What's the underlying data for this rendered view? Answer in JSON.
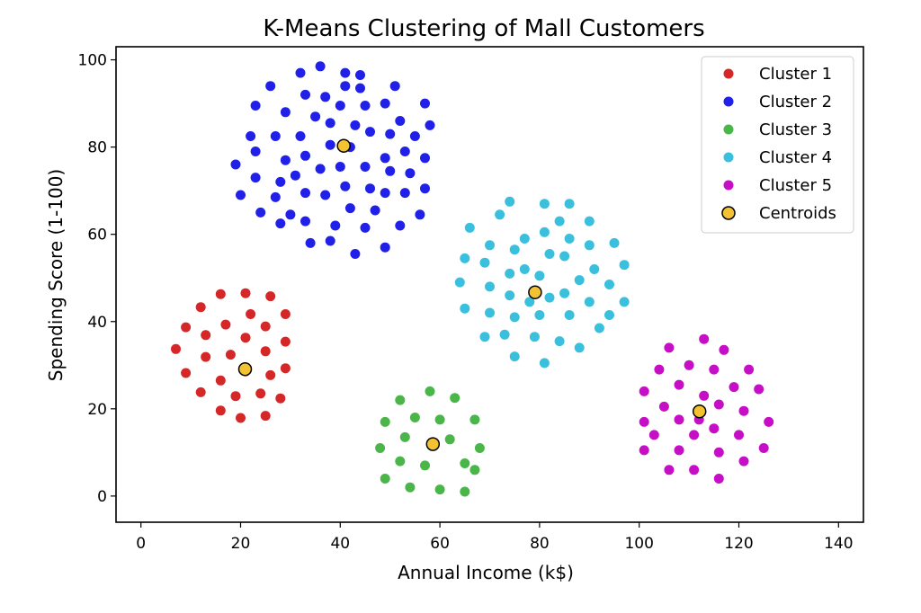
{
  "chart_data": {
    "type": "scatter",
    "title": "K-Means Clustering of Mall Customers",
    "xlabel": "Annual Income (k$)",
    "ylabel": "Spending Score (1-100)",
    "xlim": [
      -5,
      145
    ],
    "ylim": [
      -6,
      103
    ],
    "xticks": [
      0,
      20,
      40,
      60,
      80,
      100,
      120,
      140
    ],
    "yticks": [
      0,
      20,
      40,
      60,
      80,
      100
    ],
    "grid": false,
    "legend_position": "top-right",
    "series": [
      {
        "name": "Cluster 1",
        "color": "#d62728",
        "points": [
          [
            16,
            46.3
          ],
          [
            21,
            46.5
          ],
          [
            26,
            45.8
          ],
          [
            12,
            43.3
          ],
          [
            22,
            41.7
          ],
          [
            29,
            41.7
          ],
          [
            9,
            38.7
          ],
          [
            17,
            39.3
          ],
          [
            25,
            38.9
          ],
          [
            13,
            36.9
          ],
          [
            21,
            36.3
          ],
          [
            29,
            35.4
          ],
          [
            7,
            33.7
          ],
          [
            18,
            32.4
          ],
          [
            25,
            33.2
          ],
          [
            13,
            31.9
          ],
          [
            29,
            29.3
          ],
          [
            9,
            28.2
          ],
          [
            21,
            28.6
          ],
          [
            26,
            27.7
          ],
          [
            16,
            26.5
          ],
          [
            12,
            23.8
          ],
          [
            19,
            22.9
          ],
          [
            24,
            23.5
          ],
          [
            28,
            22.4
          ],
          [
            16,
            19.6
          ],
          [
            20,
            17.9
          ],
          [
            25,
            18.4
          ]
        ]
      },
      {
        "name": "Cluster 2",
        "color": "#2020e8",
        "points": [
          [
            36,
            98.5
          ],
          [
            32,
            97
          ],
          [
            41,
            97
          ],
          [
            44,
            96.5
          ],
          [
            26,
            94
          ],
          [
            41,
            94
          ],
          [
            44,
            93.5
          ],
          [
            37,
            91.5
          ],
          [
            45,
            89.5
          ],
          [
            51,
            94
          ],
          [
            33,
            92
          ],
          [
            40,
            89.5
          ],
          [
            23,
            89.5
          ],
          [
            49,
            90
          ],
          [
            57,
            90
          ],
          [
            29,
            88
          ],
          [
            35,
            87
          ],
          [
            43,
            85
          ],
          [
            52,
            86
          ],
          [
            38,
            85.5
          ],
          [
            46,
            83.5
          ],
          [
            58,
            85
          ],
          [
            22,
            82.5
          ],
          [
            27,
            82.5
          ],
          [
            32,
            82.5
          ],
          [
            55,
            82.5
          ],
          [
            50,
            83
          ],
          [
            38,
            80.5
          ],
          [
            42,
            80
          ],
          [
            23,
            79
          ],
          [
            33,
            78
          ],
          [
            29,
            77
          ],
          [
            53,
            79
          ],
          [
            57,
            77.5
          ],
          [
            19,
            76
          ],
          [
            36,
            75
          ],
          [
            40,
            75.5
          ],
          [
            45,
            75.5
          ],
          [
            49,
            77.5
          ],
          [
            50,
            74.5
          ],
          [
            31,
            73.5
          ],
          [
            28,
            72
          ],
          [
            54,
            74
          ],
          [
            23,
            73
          ],
          [
            41,
            71
          ],
          [
            46,
            70.5
          ],
          [
            57,
            70.5
          ],
          [
            20,
            69
          ],
          [
            27,
            68.5
          ],
          [
            33,
            69.5
          ],
          [
            37,
            69
          ],
          [
            49,
            69.5
          ],
          [
            53,
            69.5
          ],
          [
            42,
            66
          ],
          [
            47,
            65.5
          ],
          [
            24,
            65
          ],
          [
            30,
            64.5
          ],
          [
            56,
            64.5
          ],
          [
            33,
            63
          ],
          [
            28,
            62.5
          ],
          [
            39,
            62
          ],
          [
            45,
            61.5
          ],
          [
            52,
            62
          ],
          [
            34,
            58
          ],
          [
            38,
            58.5
          ],
          [
            49,
            57
          ],
          [
            43,
            55.5
          ]
        ]
      },
      {
        "name": "Cluster 3",
        "color": "#4ab64a",
        "points": [
          [
            58,
            24
          ],
          [
            52,
            22
          ],
          [
            63,
            22.5
          ],
          [
            55,
            18
          ],
          [
            60,
            17.5
          ],
          [
            67,
            17.5
          ],
          [
            49,
            17
          ],
          [
            53,
            13.5
          ],
          [
            62,
            13
          ],
          [
            68,
            11
          ],
          [
            48,
            11
          ],
          [
            65,
            7.5
          ],
          [
            57,
            7
          ],
          [
            52,
            8
          ],
          [
            67,
            6
          ],
          [
            49,
            4
          ],
          [
            54,
            2
          ],
          [
            60,
            1.5
          ],
          [
            65,
            1
          ]
        ]
      },
      {
        "name": "Cluster 4",
        "color": "#3ac0dc",
        "points": [
          [
            74,
            67.5
          ],
          [
            81,
            67
          ],
          [
            86,
            67
          ],
          [
            72,
            64.5
          ],
          [
            84,
            63
          ],
          [
            90,
            63
          ],
          [
            66,
            61.5
          ],
          [
            81,
            60.5
          ],
          [
            86,
            59
          ],
          [
            77,
            59
          ],
          [
            70,
            57.5
          ],
          [
            75,
            56.5
          ],
          [
            90,
            57.5
          ],
          [
            95,
            58
          ],
          [
            65,
            54.5
          ],
          [
            85,
            55
          ],
          [
            69,
            53.5
          ],
          [
            82,
            55.5
          ],
          [
            97,
            53
          ],
          [
            77,
            52
          ],
          [
            74,
            51
          ],
          [
            80,
            50.5
          ],
          [
            91,
            52
          ],
          [
            88,
            49.5
          ],
          [
            64,
            49
          ],
          [
            70,
            48
          ],
          [
            74,
            46
          ],
          [
            85,
            46.5
          ],
          [
            94,
            48.5
          ],
          [
            82,
            45.5
          ],
          [
            78,
            44.5
          ],
          [
            90,
            44.5
          ],
          [
            97,
            44.5
          ],
          [
            65,
            43
          ],
          [
            70,
            42
          ],
          [
            75,
            41
          ],
          [
            80,
            41.5
          ],
          [
            86,
            41.5
          ],
          [
            94,
            41.5
          ],
          [
            92,
            38.5
          ],
          [
            69,
            36.5
          ],
          [
            73,
            37
          ],
          [
            79,
            36.5
          ],
          [
            84,
            35.5
          ],
          [
            88,
            34
          ],
          [
            75,
            32
          ],
          [
            81,
            30.5
          ]
        ]
      },
      {
        "name": "Cluster 5",
        "color": "#c70ec7",
        "points": [
          [
            113,
            36
          ],
          [
            106,
            34
          ],
          [
            117,
            33.5
          ],
          [
            110,
            30
          ],
          [
            104,
            29
          ],
          [
            115,
            29
          ],
          [
            122,
            29
          ],
          [
            108,
            25.5
          ],
          [
            119,
            25
          ],
          [
            124,
            24.5
          ],
          [
            101,
            24
          ],
          [
            113,
            23
          ],
          [
            105,
            20.5
          ],
          [
            116,
            21
          ],
          [
            108,
            17.5
          ],
          [
            112,
            17.5
          ],
          [
            121,
            19.5
          ],
          [
            101,
            17
          ],
          [
            126,
            17
          ],
          [
            115,
            15.5
          ],
          [
            103,
            14
          ],
          [
            111,
            14
          ],
          [
            120,
            14
          ],
          [
            125,
            11
          ],
          [
            101,
            10.5
          ],
          [
            108,
            10.5
          ],
          [
            116,
            10
          ],
          [
            121,
            8
          ],
          [
            106,
            6
          ],
          [
            111,
            6
          ],
          [
            116,
            4
          ]
        ]
      },
      {
        "name": "Centroids",
        "color": "#f2c232",
        "edge_color": "#000000",
        "points": [
          [
            20.9,
            29.1
          ],
          [
            40.7,
            80.3
          ],
          [
            58.6,
            11.9
          ],
          [
            79.1,
            46.7
          ],
          [
            112.1,
            19.4
          ]
        ]
      }
    ]
  }
}
